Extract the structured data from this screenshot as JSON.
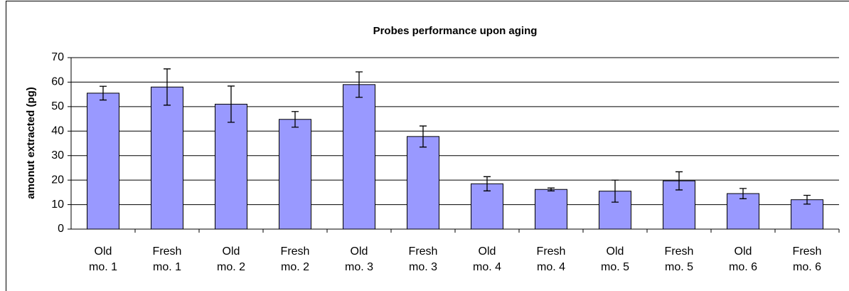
{
  "chart_data": {
    "type": "bar",
    "title": "Probes performance upon aging",
    "y_label": "amonut extracted (pg)",
    "categories": [
      [
        "Old",
        "mo. 1"
      ],
      [
        "Fresh",
        "mo. 1"
      ],
      [
        "Old",
        "mo. 2"
      ],
      [
        "Fresh",
        "mo. 2"
      ],
      [
        "Old",
        "mo. 3"
      ],
      [
        "Fresh",
        "mo. 3"
      ],
      [
        "Old",
        "mo. 4"
      ],
      [
        "Fresh",
        "mo. 4"
      ],
      [
        "Old",
        "mo. 5"
      ],
      [
        "Fresh",
        "mo. 5"
      ],
      [
        "Old",
        "mo. 6"
      ],
      [
        "Fresh",
        "mo. 6"
      ]
    ],
    "values": [
      55.5,
      58,
      51,
      44.8,
      59,
      37.8,
      18.5,
      16.2,
      15.5,
      19.7,
      14.5,
      12
    ],
    "errors": [
      2.8,
      7.4,
      7.4,
      3.2,
      5.2,
      4.3,
      2.9,
      0.6,
      4.5,
      3.7,
      2.1,
      1.8
    ],
    "color": "#9999ff",
    "ylim": [
      0,
      70
    ],
    "yticks": [
      0,
      10,
      20,
      30,
      40,
      50,
      60,
      70
    ],
    "grid": true
  }
}
